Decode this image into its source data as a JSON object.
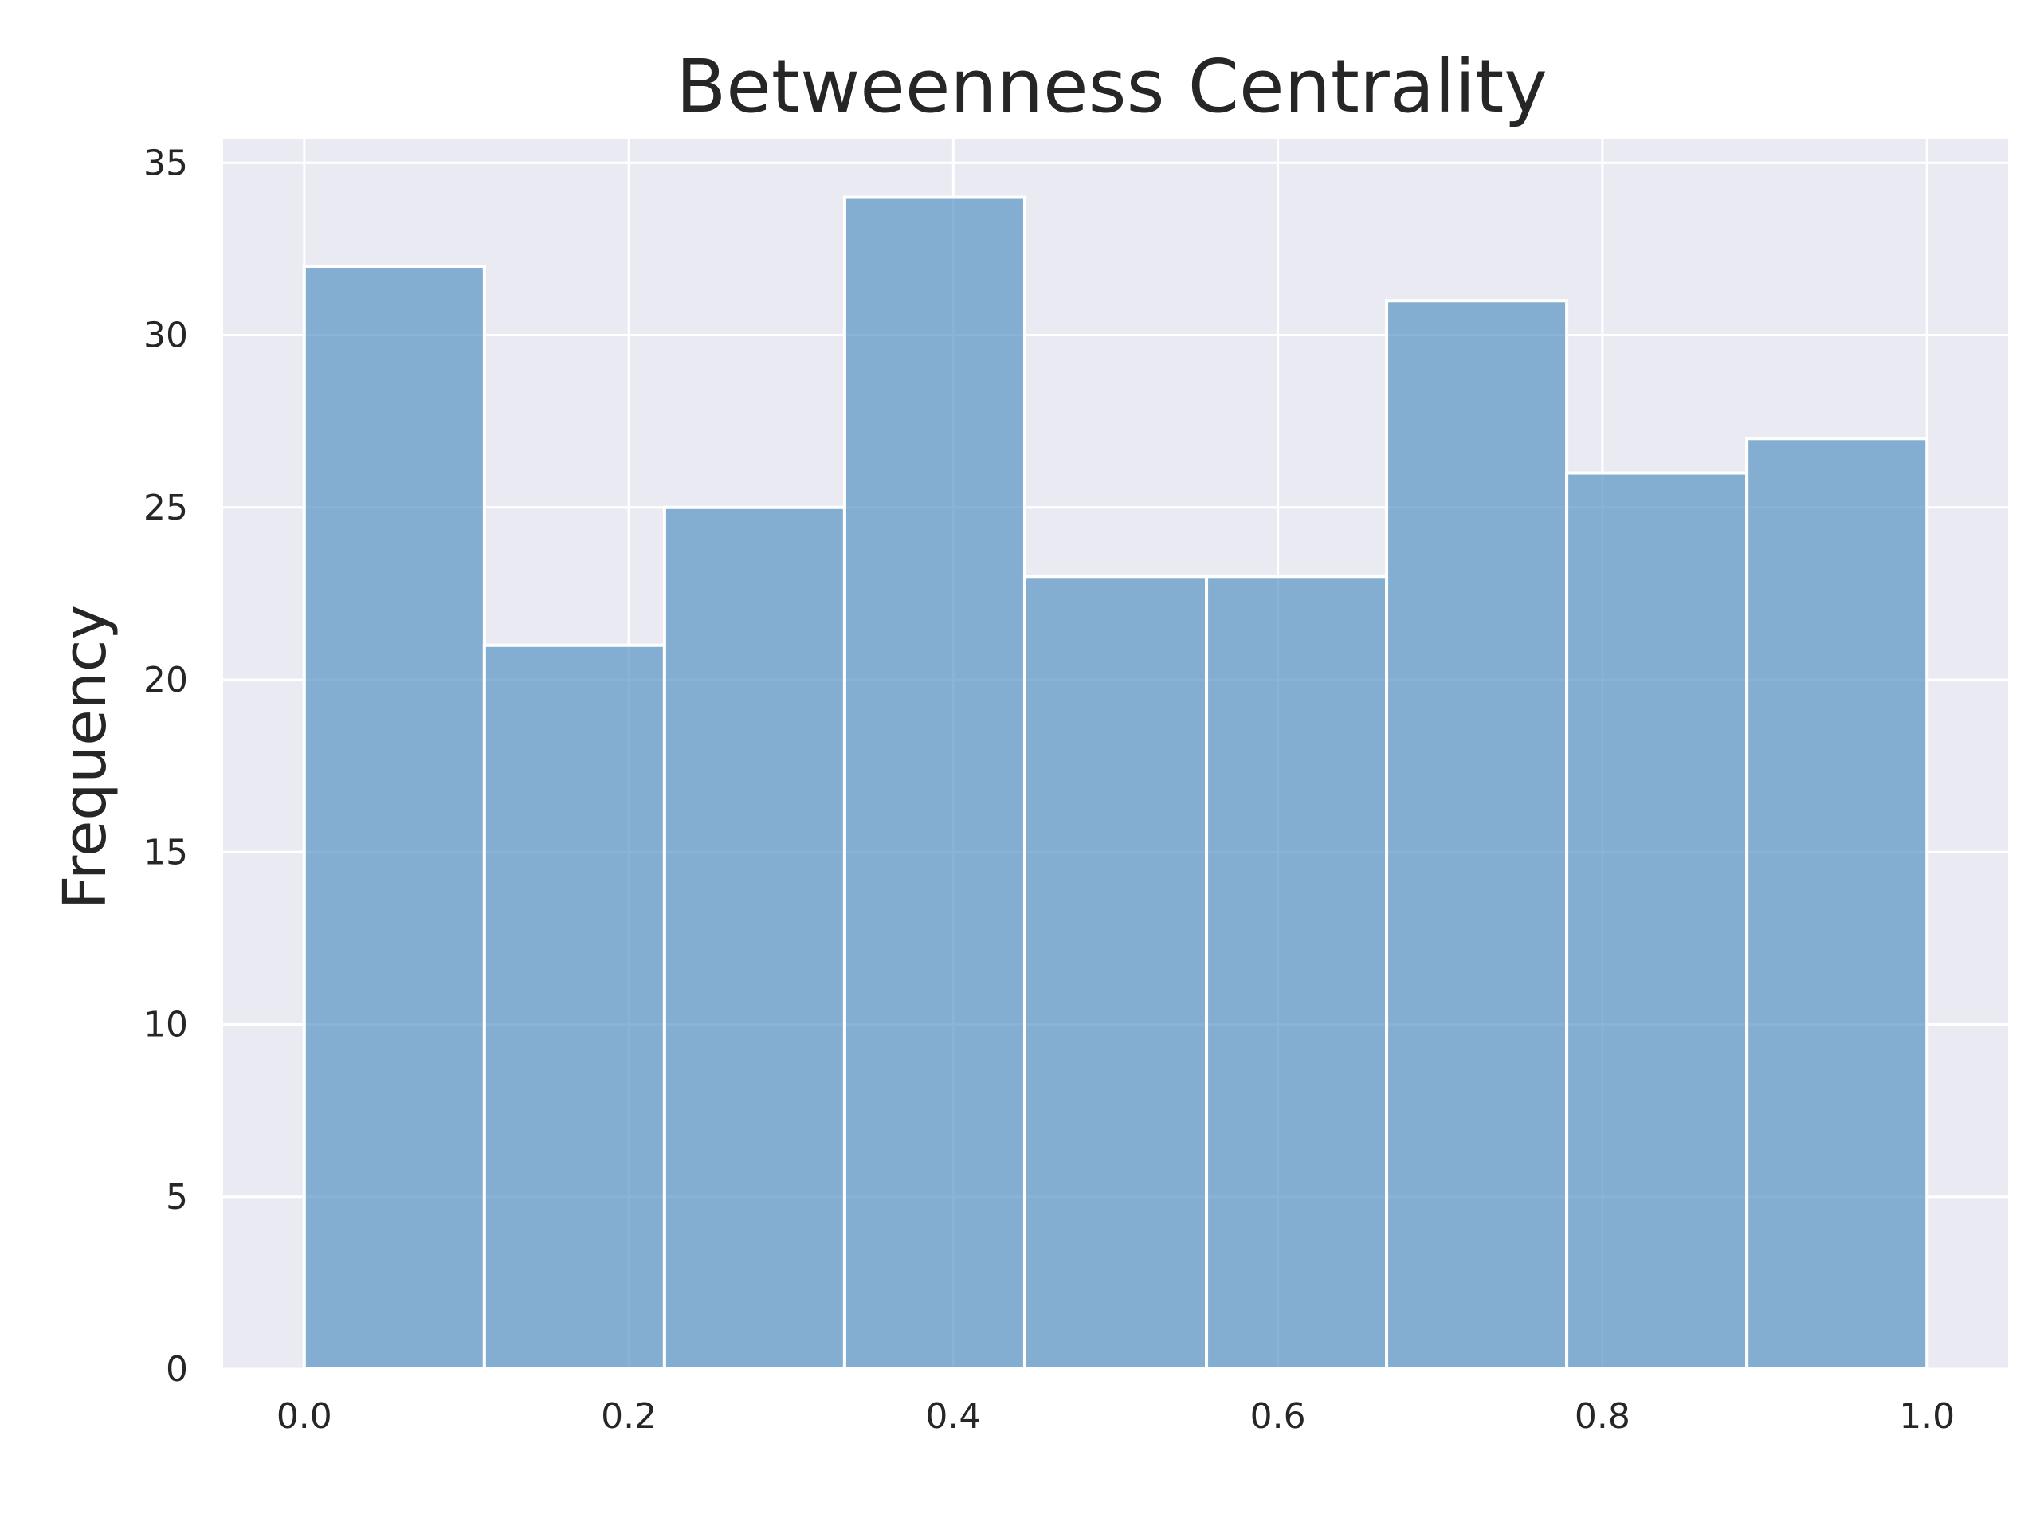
{
  "chart_data": {
    "type": "bar",
    "title": "Betweenness Centrality",
    "xlabel": "",
    "ylabel": "Frequency",
    "bins": [
      {
        "start": 0.0,
        "end": 0.111,
        "count": 32
      },
      {
        "start": 0.111,
        "end": 0.222,
        "count": 21
      },
      {
        "start": 0.222,
        "end": 0.333,
        "count": 25
      },
      {
        "start": 0.333,
        "end": 0.444,
        "count": 34
      },
      {
        "start": 0.444,
        "end": 0.556,
        "count": 23
      },
      {
        "start": 0.556,
        "end": 0.667,
        "count": 23
      },
      {
        "start": 0.667,
        "end": 0.778,
        "count": 31
      },
      {
        "start": 0.778,
        "end": 0.889,
        "count": 26
      },
      {
        "start": 0.889,
        "end": 1.0,
        "count": 27
      }
    ],
    "xlim": [
      -0.05,
      1.05
    ],
    "ylim": [
      0,
      35.7
    ],
    "xticks": [
      {
        "value": 0.0,
        "label": "0.0"
      },
      {
        "value": 0.2,
        "label": "0.2"
      },
      {
        "value": 0.4,
        "label": "0.4"
      },
      {
        "value": 0.6,
        "label": "0.6"
      },
      {
        "value": 0.8,
        "label": "0.8"
      },
      {
        "value": 1.0,
        "label": "1.0"
      }
    ],
    "yticks": [
      {
        "value": 0,
        "label": "0"
      },
      {
        "value": 5,
        "label": "5"
      },
      {
        "value": 10,
        "label": "10"
      },
      {
        "value": 15,
        "label": "15"
      },
      {
        "value": 20,
        "label": "20"
      },
      {
        "value": 25,
        "label": "25"
      },
      {
        "value": 30,
        "label": "30"
      },
      {
        "value": 35,
        "label": "35"
      }
    ],
    "grid": true,
    "legend": "none",
    "colors": {
      "background": "#ffffff",
      "plot_background": "#eaeaf2",
      "bar": "#4c8cbf",
      "grid": "#ffffff",
      "text": "#262626"
    }
  }
}
